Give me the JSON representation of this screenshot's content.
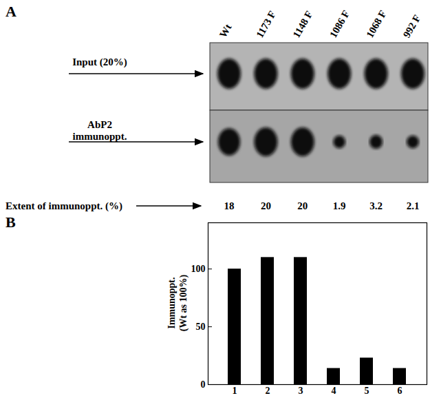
{
  "panel_a": {
    "label": "A",
    "lanes": [
      "Wt",
      "1173 F",
      "1148 F",
      "1086 F",
      "1068 F",
      "992 F"
    ],
    "rows": [
      "Input (20%)",
      "AbP2\nimmunoppt."
    ],
    "extent_label": "Extent of immunoppt. (%)",
    "extent": [
      18,
      20,
      20,
      1.9,
      3.2,
      2.1
    ]
  },
  "chart_data": {
    "panel_label": "B",
    "type": "bar",
    "categories": [
      "1",
      "2",
      "3",
      "4",
      "5",
      "6"
    ],
    "values": [
      100,
      110,
      110,
      14,
      23,
      14
    ],
    "color": "#000000",
    "ylim": [
      0,
      140
    ],
    "yticks": [
      0,
      50,
      100
    ],
    "ylabel": "Immunoppt.\n(Wt as 100%)",
    "grid": false
  }
}
